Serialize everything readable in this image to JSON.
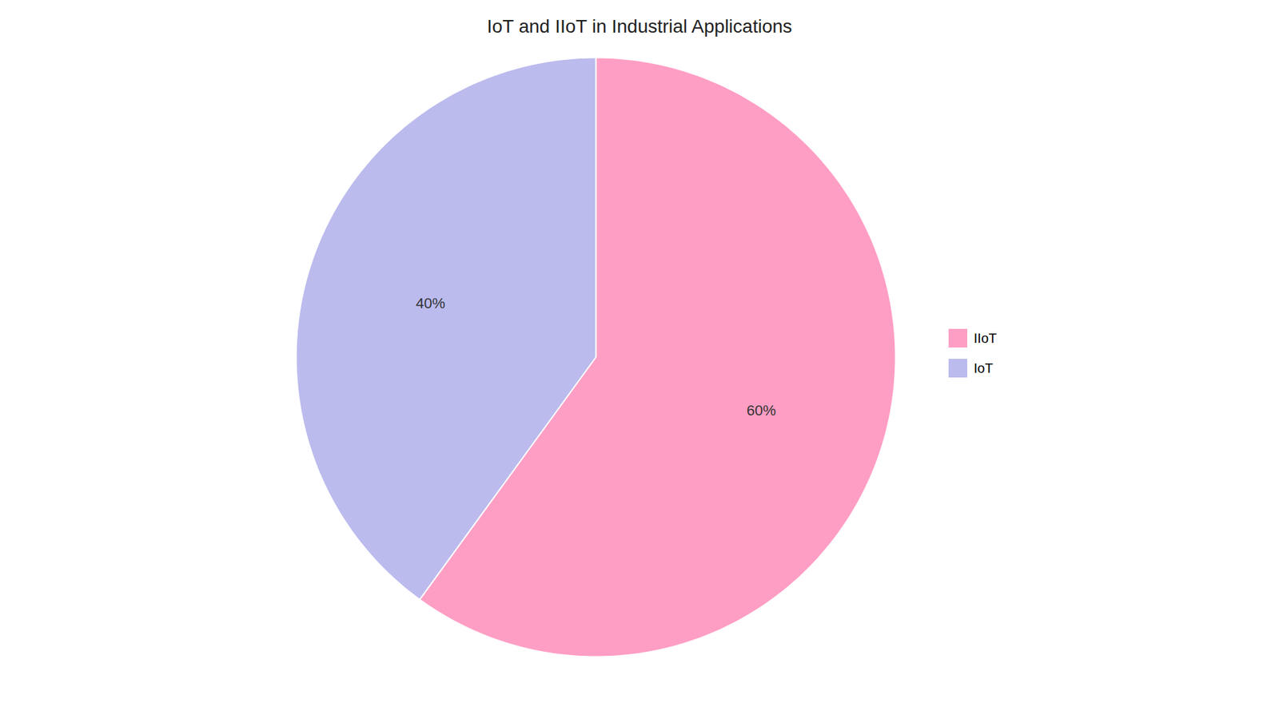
{
  "chart_data": {
    "type": "pie",
    "title": "IoT and IIoT in Industrial Applications",
    "categories": [
      "IIoT",
      "IoT"
    ],
    "values": [
      60,
      40
    ],
    "value_labels": [
      "60%",
      "40%"
    ],
    "colors": [
      "#FF9EC4",
      "#BBBBEE"
    ],
    "data_labels": true,
    "legend": "right"
  }
}
